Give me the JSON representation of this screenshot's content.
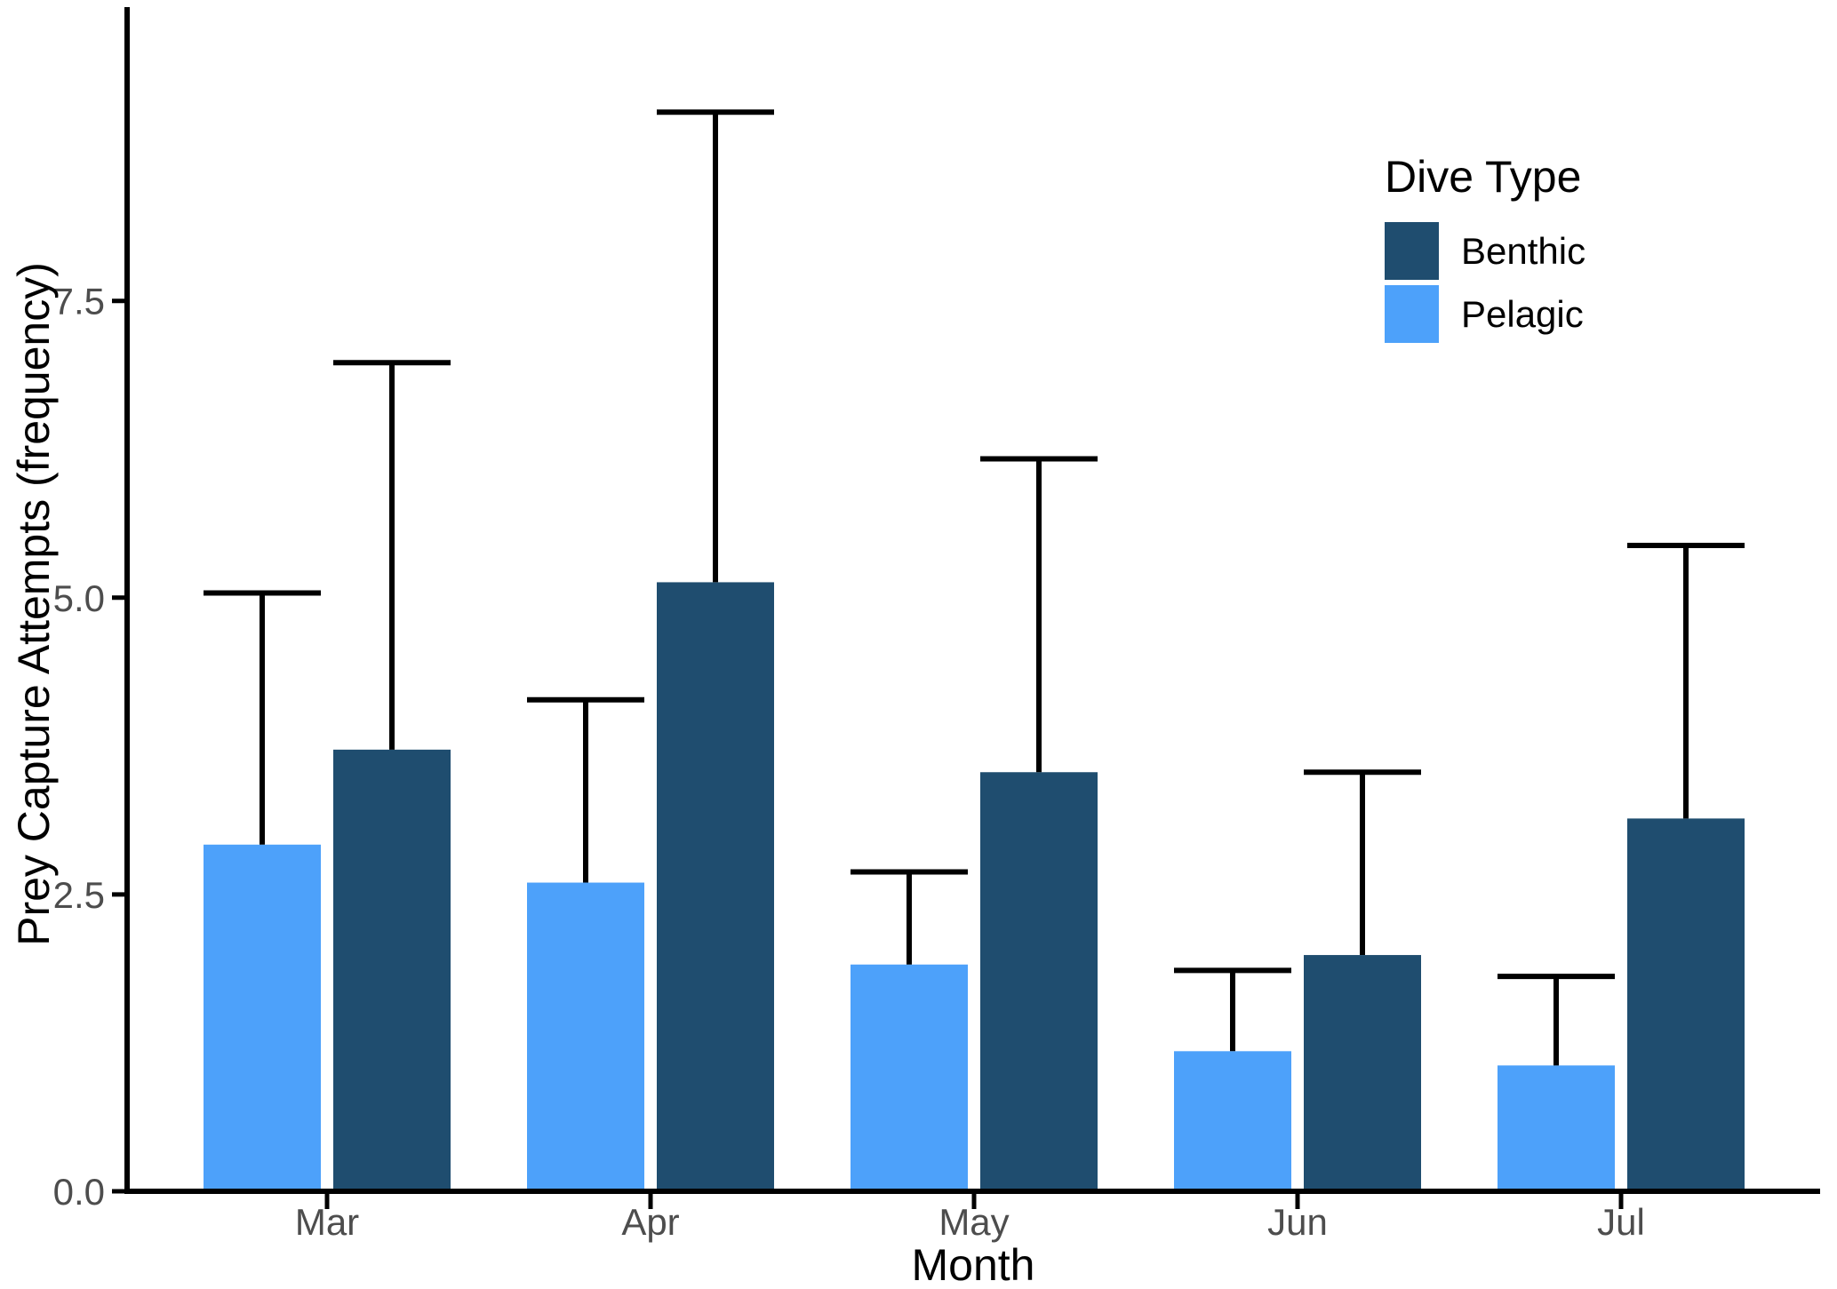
{
  "chart_data": {
    "type": "bar",
    "title": "",
    "xlabel": "Month",
    "ylabel": "Prey Capture Attempts (frequency)",
    "categories": [
      "Mar",
      "Apr",
      "May",
      "Jun",
      "Jul"
    ],
    "series": [
      {
        "name": "Benthic",
        "color": "#1F4D6F",
        "values": [
          3.72,
          5.13,
          3.53,
          1.99,
          3.14
        ],
        "error_upper": [
          6.98,
          9.09,
          6.17,
          3.53,
          5.44
        ]
      },
      {
        "name": "Pelagic",
        "color": "#4DA1FA",
        "values": [
          2.92,
          2.6,
          1.91,
          1.18,
          1.06
        ],
        "error_upper": [
          5.04,
          4.14,
          2.69,
          1.86,
          1.81
        ]
      }
    ],
    "dodge_order": [
      "Pelagic",
      "Benthic"
    ],
    "yticks": [
      0.0,
      2.5,
      5.0,
      7.5
    ],
    "ytick_labels": [
      "0.0",
      "2.5",
      "5.0",
      "7.5"
    ],
    "ylim": [
      0,
      10
    ],
    "grid": "off",
    "legend_title": "Dive Type",
    "legend_position": "inside-top-right",
    "colors": {
      "axis_line": "#000000",
      "tick_label": "#4D4D4D",
      "error_bar": "#000000",
      "background": "#FFFFFF"
    }
  }
}
